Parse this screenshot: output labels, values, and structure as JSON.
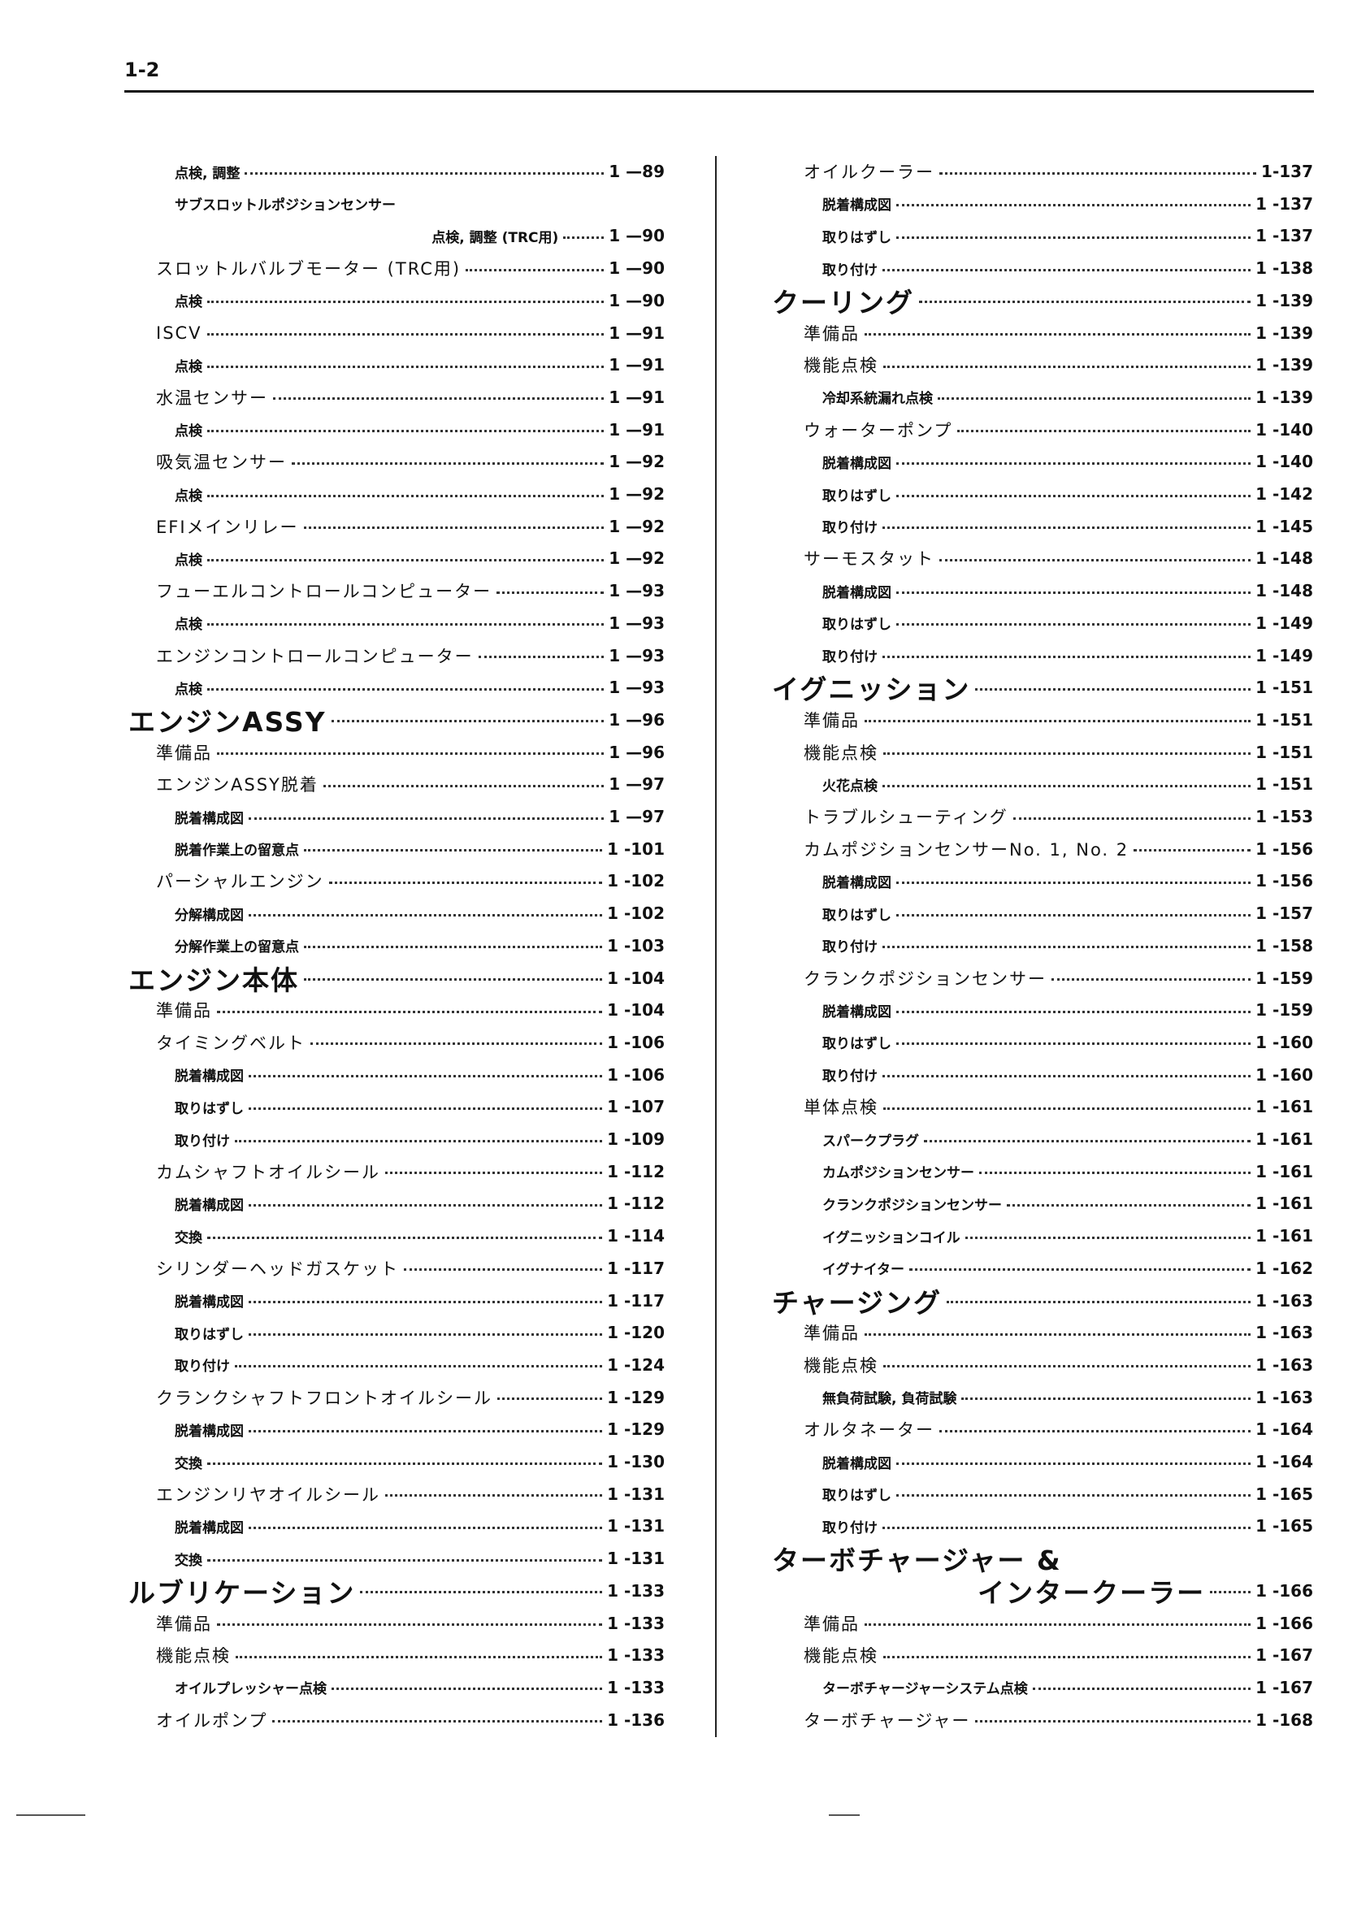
{
  "header": {
    "page": "1-2"
  },
  "columns": [
    {
      "entries": [
        {
          "level": 3,
          "label": "点検, 調整",
          "page": "1 —89"
        },
        {
          "level": 3,
          "label": "サブスロットルポジションセンサー",
          "label2": "点検, 調整 (TRC用)",
          "page": "1 —90"
        },
        {
          "level": 2,
          "label": "スロットルバルブモーター (TRC用)",
          "page": "1 —90"
        },
        {
          "level": 3,
          "label": "点検",
          "page": "1 —90"
        },
        {
          "level": 2,
          "label": "ISCV",
          "page": "1 —91"
        },
        {
          "level": 3,
          "label": "点検",
          "page": "1 —91"
        },
        {
          "level": 2,
          "label": "水温センサー",
          "page": "1 —91"
        },
        {
          "level": 3,
          "label": "点検",
          "page": "1 —91"
        },
        {
          "level": 2,
          "label": "吸気温センサー",
          "page": "1 —92"
        },
        {
          "level": 3,
          "label": "点検",
          "page": "1 —92"
        },
        {
          "level": 2,
          "label": "EFIメインリレー",
          "page": "1 —92"
        },
        {
          "level": 3,
          "label": "点検",
          "page": "1 —92"
        },
        {
          "level": 2,
          "label": "フューエルコントロールコンピューター",
          "page": "1 —93"
        },
        {
          "level": 3,
          "label": "点検",
          "page": "1 —93"
        },
        {
          "level": 2,
          "label": "エンジンコントロールコンピューター",
          "page": "1 —93"
        },
        {
          "level": 3,
          "label": "点検",
          "page": "1 —93"
        },
        {
          "level": 1,
          "label": "エンジンASSY",
          "page": "1 —96"
        },
        {
          "level": 2,
          "label": "準備品",
          "page": "1 —96"
        },
        {
          "level": 2,
          "label": "エンジンASSY脱着",
          "page": "1 —97"
        },
        {
          "level": 3,
          "label": "脱着構成図",
          "page": "1 —97"
        },
        {
          "level": 3,
          "label": "脱着作業上の留意点",
          "page": "1 -101"
        },
        {
          "level": 2,
          "label": "パーシャルエンジン",
          "page": "1 -102"
        },
        {
          "level": 3,
          "label": "分解構成図",
          "page": "1 -102"
        },
        {
          "level": 3,
          "label": "分解作業上の留意点",
          "page": "1 -103"
        },
        {
          "level": 1,
          "label": "エンジン本体",
          "page": "1 -104"
        },
        {
          "level": 2,
          "label": "準備品",
          "page": "1 -104"
        },
        {
          "level": 2,
          "label": "タイミングベルト",
          "page": "1 -106"
        },
        {
          "level": 3,
          "label": "脱着構成図",
          "page": "1 -106"
        },
        {
          "level": 3,
          "label": "取りはずし",
          "page": "1 -107"
        },
        {
          "level": 3,
          "label": "取り付け",
          "page": "1 -109"
        },
        {
          "level": 2,
          "label": "カムシャフトオイルシール",
          "page": "1 -112"
        },
        {
          "level": 3,
          "label": "脱着構成図",
          "page": "1 -112"
        },
        {
          "level": 3,
          "label": "交換",
          "page": "1 -114"
        },
        {
          "level": 2,
          "label": "シリンダーヘッドガスケット",
          "page": "1 -117"
        },
        {
          "level": 3,
          "label": "脱着構成図",
          "page": "1 -117"
        },
        {
          "level": 3,
          "label": "取りはずし",
          "page": "1 -120"
        },
        {
          "level": 3,
          "label": "取り付け",
          "page": "1 -124"
        },
        {
          "level": 2,
          "label": "クランクシャフトフロントオイルシール",
          "page": "1 -129"
        },
        {
          "level": 3,
          "label": "脱着構成図",
          "page": "1 -129"
        },
        {
          "level": 3,
          "label": "交換",
          "page": "1 -130"
        },
        {
          "level": 2,
          "label": "エンジンリヤオイルシール",
          "page": "1 -131"
        },
        {
          "level": 3,
          "label": "脱着構成図",
          "page": "1 -131"
        },
        {
          "level": 3,
          "label": "交換",
          "page": "1 -131"
        },
        {
          "level": 1,
          "label": "ルブリケーション",
          "page": "1 -133"
        },
        {
          "level": 2,
          "label": "準備品",
          "page": "1 -133"
        },
        {
          "level": 2,
          "label": "機能点検",
          "page": "1 -133"
        },
        {
          "level": 3,
          "label": "オイルプレッシャー点検",
          "page": "1 -133"
        },
        {
          "level": 2,
          "label": "オイルポンプ",
          "page": "1 -136"
        }
      ]
    },
    {
      "entries": [
        {
          "level": 2,
          "label": "オイルクーラー",
          "page": "1-137"
        },
        {
          "level": 3,
          "label": "脱着構成図",
          "page": "1 -137"
        },
        {
          "level": 3,
          "label": "取りはずし",
          "page": "1 -137"
        },
        {
          "level": 3,
          "label": "取り付け",
          "page": "1 -138"
        },
        {
          "level": 1,
          "label": "クーリング",
          "page": "1 -139"
        },
        {
          "level": 2,
          "label": "準備品",
          "page": "1 -139"
        },
        {
          "level": 2,
          "label": "機能点検",
          "page": "1 -139"
        },
        {
          "level": 3,
          "label": "冷却系統漏れ点検",
          "page": "1 -139"
        },
        {
          "level": 2,
          "label": "ウォーターポンプ",
          "page": "1 -140"
        },
        {
          "level": 3,
          "label": "脱着構成図",
          "page": "1 -140"
        },
        {
          "level": 3,
          "label": "取りはずし",
          "page": "1 -142"
        },
        {
          "level": 3,
          "label": "取り付け",
          "page": "1 -145"
        },
        {
          "level": 2,
          "label": "サーモスタット",
          "page": "1 -148"
        },
        {
          "level": 3,
          "label": "脱着構成図",
          "page": "1 -148"
        },
        {
          "level": 3,
          "label": "取りはずし",
          "page": "1 -149"
        },
        {
          "level": 3,
          "label": "取り付け",
          "page": "1 -149"
        },
        {
          "level": 1,
          "label": "イグニッション",
          "page": "1 -151"
        },
        {
          "level": 2,
          "label": "準備品",
          "page": "1 -151"
        },
        {
          "level": 2,
          "label": "機能点検",
          "page": "1 -151"
        },
        {
          "level": 3,
          "label": "火花点検",
          "page": "1 -151"
        },
        {
          "level": 2,
          "label": "トラブルシューティング",
          "page": "1 -153"
        },
        {
          "level": 2,
          "label": "カムポジションセンサーNo. 1, No. 2",
          "page": "1 -156"
        },
        {
          "level": 3,
          "label": "脱着構成図",
          "page": "1 -156"
        },
        {
          "level": 3,
          "label": "取りはずし",
          "page": "1 -157"
        },
        {
          "level": 3,
          "label": "取り付け",
          "page": "1 -158"
        },
        {
          "level": 2,
          "label": "クランクポジションセンサー",
          "page": "1 -159"
        },
        {
          "level": 3,
          "label": "脱着構成図",
          "page": "1 -159"
        },
        {
          "level": 3,
          "label": "取りはずし",
          "page": "1 -160"
        },
        {
          "level": 3,
          "label": "取り付け",
          "page": "1 -160"
        },
        {
          "level": 2,
          "label": "単体点検",
          "page": "1 -161"
        },
        {
          "level": 3,
          "label": "スパークプラグ",
          "page": "1 -161"
        },
        {
          "level": 3,
          "label": "カムポジションセンサー",
          "page": "1 -161"
        },
        {
          "level": 3,
          "label": "クランクポジションセンサー",
          "page": "1 -161"
        },
        {
          "level": 3,
          "label": "イグニッションコイル",
          "page": "1 -161"
        },
        {
          "level": 3,
          "label": "イグナイター",
          "page": "1 -162"
        },
        {
          "level": 1,
          "label": "チャージング",
          "page": "1 -163"
        },
        {
          "level": 2,
          "label": "準備品",
          "page": "1 -163"
        },
        {
          "level": 2,
          "label": "機能点検",
          "page": "1 -163"
        },
        {
          "level": 3,
          "label": "無負荷試験, 負荷試験",
          "page": "1 -163"
        },
        {
          "level": 2,
          "label": "オルタネーター",
          "page": "1 -164"
        },
        {
          "level": 3,
          "label": "脱着構成図",
          "page": "1 -164"
        },
        {
          "level": 3,
          "label": "取りはずし",
          "page": "1 -165"
        },
        {
          "level": 3,
          "label": "取り付け",
          "page": "1 -165"
        },
        {
          "level": 1,
          "label": "ターボチャージャー  &",
          "label2": "インタークーラー",
          "page": "1 -166"
        },
        {
          "level": 2,
          "label": "準備品",
          "page": "1 -166"
        },
        {
          "level": 2,
          "label": "機能点検",
          "page": "1 -167"
        },
        {
          "level": 3,
          "label": "ターボチャージャーシステム点検",
          "page": "1 -167"
        },
        {
          "level": 2,
          "label": "ターボチャージャー",
          "page": "1 -168"
        }
      ]
    }
  ]
}
